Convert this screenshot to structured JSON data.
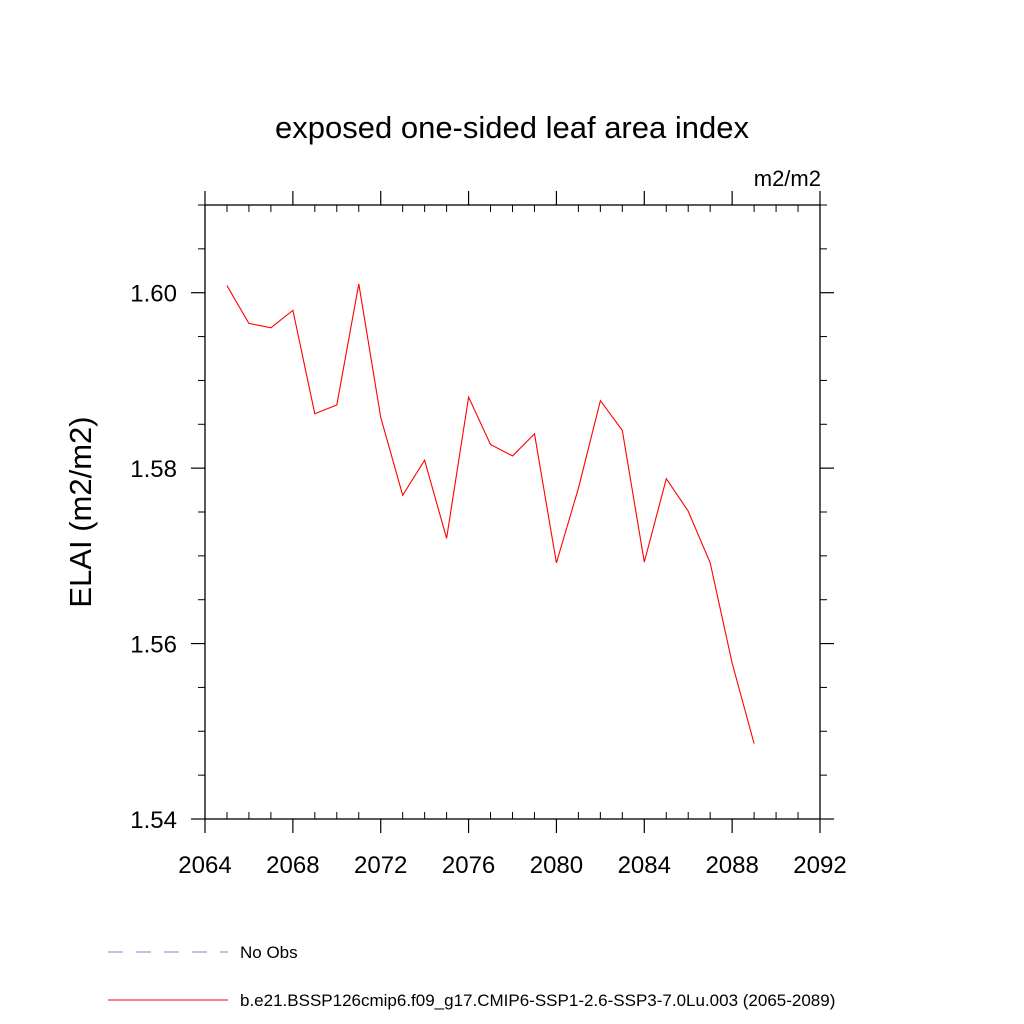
{
  "chart_data": {
    "type": "line",
    "title": "exposed one-sided leaf area index",
    "units": "m2/m2",
    "xlabel": "",
    "ylabel": "ELAI  (m2/m2)",
    "xlim": [
      2064,
      2092
    ],
    "ylim": [
      1.54,
      1.61
    ],
    "x_ticks": [
      2064,
      2068,
      2072,
      2076,
      2080,
      2084,
      2088,
      2092
    ],
    "x_tick_labels": [
      "2064",
      "2068",
      "2072",
      "2076",
      "2080",
      "2084",
      "2088",
      "2092"
    ],
    "x_minor_step": 1,
    "y_ticks": [
      1.54,
      1.56,
      1.58,
      1.6
    ],
    "y_tick_labels": [
      "1.54",
      "1.56",
      "1.58",
      "1.60"
    ],
    "y_minor_step": 0.005,
    "grid": false,
    "legend_position": "bottom",
    "series": [
      {
        "name": "b.e21.BSSP126cmip6.f09_g17.CMIP6-SSP1-2.6-SSP3-7.0Lu.003 (2065-2089)",
        "color": "#ff0000",
        "style": "solid",
        "x": [
          2065,
          2066,
          2067,
          2068,
          2069,
          2070,
          2071,
          2072,
          2073,
          2074,
          2075,
          2076,
          2077,
          2078,
          2079,
          2080,
          2081,
          2082,
          2083,
          2084,
          2085,
          2086,
          2087,
          2088,
          2089
        ],
        "values": [
          1.6008,
          1.5965,
          1.596,
          1.598,
          1.5862,
          1.5872,
          1.601,
          1.5858,
          1.5769,
          1.5809,
          1.572,
          1.5881,
          1.5827,
          1.5814,
          1.5839,
          1.5692,
          1.5777,
          1.5877,
          1.5843,
          1.5693,
          1.5788,
          1.5751,
          1.5692,
          1.5578,
          1.5486
        ]
      }
    ],
    "legend": [
      {
        "label": "No Obs",
        "color": "#8a80c8",
        "style": "dashed"
      },
      {
        "label": "b.e21.BSSP126cmip6.f09_g17.CMIP6-SSP1-2.6-SSP3-7.0Lu.003 (2065-2089)",
        "color": "#ff0000",
        "style": "solid"
      }
    ]
  }
}
